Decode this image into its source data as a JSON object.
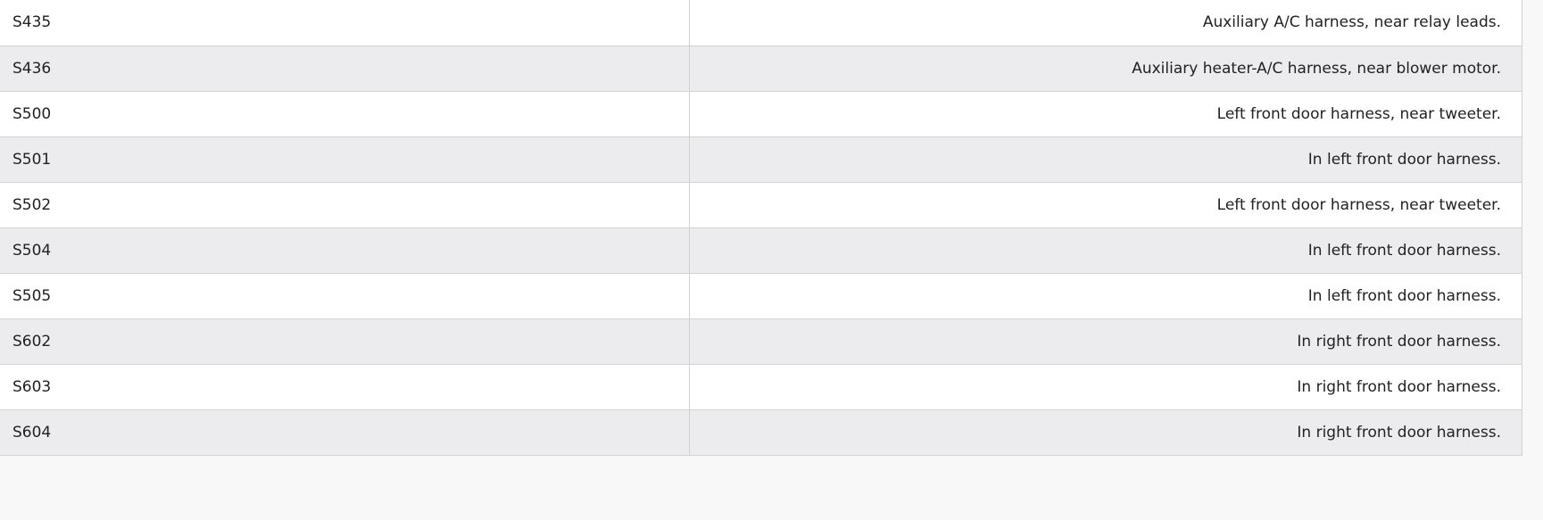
{
  "table": {
    "rows": [
      {
        "code": "S435",
        "location": "Auxiliary A/C harness, near relay leads."
      },
      {
        "code": "S436",
        "location": "Auxiliary heater-A/C harness, near blower motor."
      },
      {
        "code": "S500",
        "location": "Left front door harness, near tweeter."
      },
      {
        "code": "S501",
        "location": "In left front door harness."
      },
      {
        "code": "S502",
        "location": "Left front door harness, near tweeter."
      },
      {
        "code": "S504",
        "location": "In left front door harness."
      },
      {
        "code": "S505",
        "location": "In left front door harness."
      },
      {
        "code": "S602",
        "location": "In right front door harness."
      },
      {
        "code": "S603",
        "location": "In right front door harness."
      },
      {
        "code": "S604",
        "location": "In right front door harness."
      }
    ]
  }
}
